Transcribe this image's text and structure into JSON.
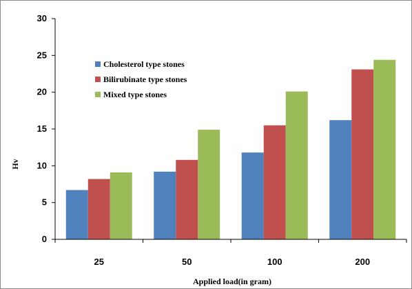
{
  "chart_data": {
    "type": "bar",
    "title": "",
    "xlabel": "Applied load(in gram)",
    "ylabel": "Hv",
    "ylim": [
      0,
      30
    ],
    "yticks": [
      0,
      5,
      10,
      15,
      20,
      25,
      30
    ],
    "categories": [
      "25",
      "50",
      "100",
      "200"
    ],
    "grid": false,
    "legend": "top-left",
    "series": [
      {
        "name": "Cholesterol type stones",
        "color": "#4f81bd",
        "values": [
          6.7,
          9.2,
          11.8,
          16.2
        ]
      },
      {
        "name": "Bilirubinate type stones",
        "color": "#c0504d",
        "values": [
          8.2,
          10.8,
          15.5,
          23.1
        ]
      },
      {
        "name": "Mixed type stones",
        "color": "#9bbb59",
        "values": [
          9.1,
          14.9,
          20.1,
          24.4
        ]
      }
    ]
  }
}
